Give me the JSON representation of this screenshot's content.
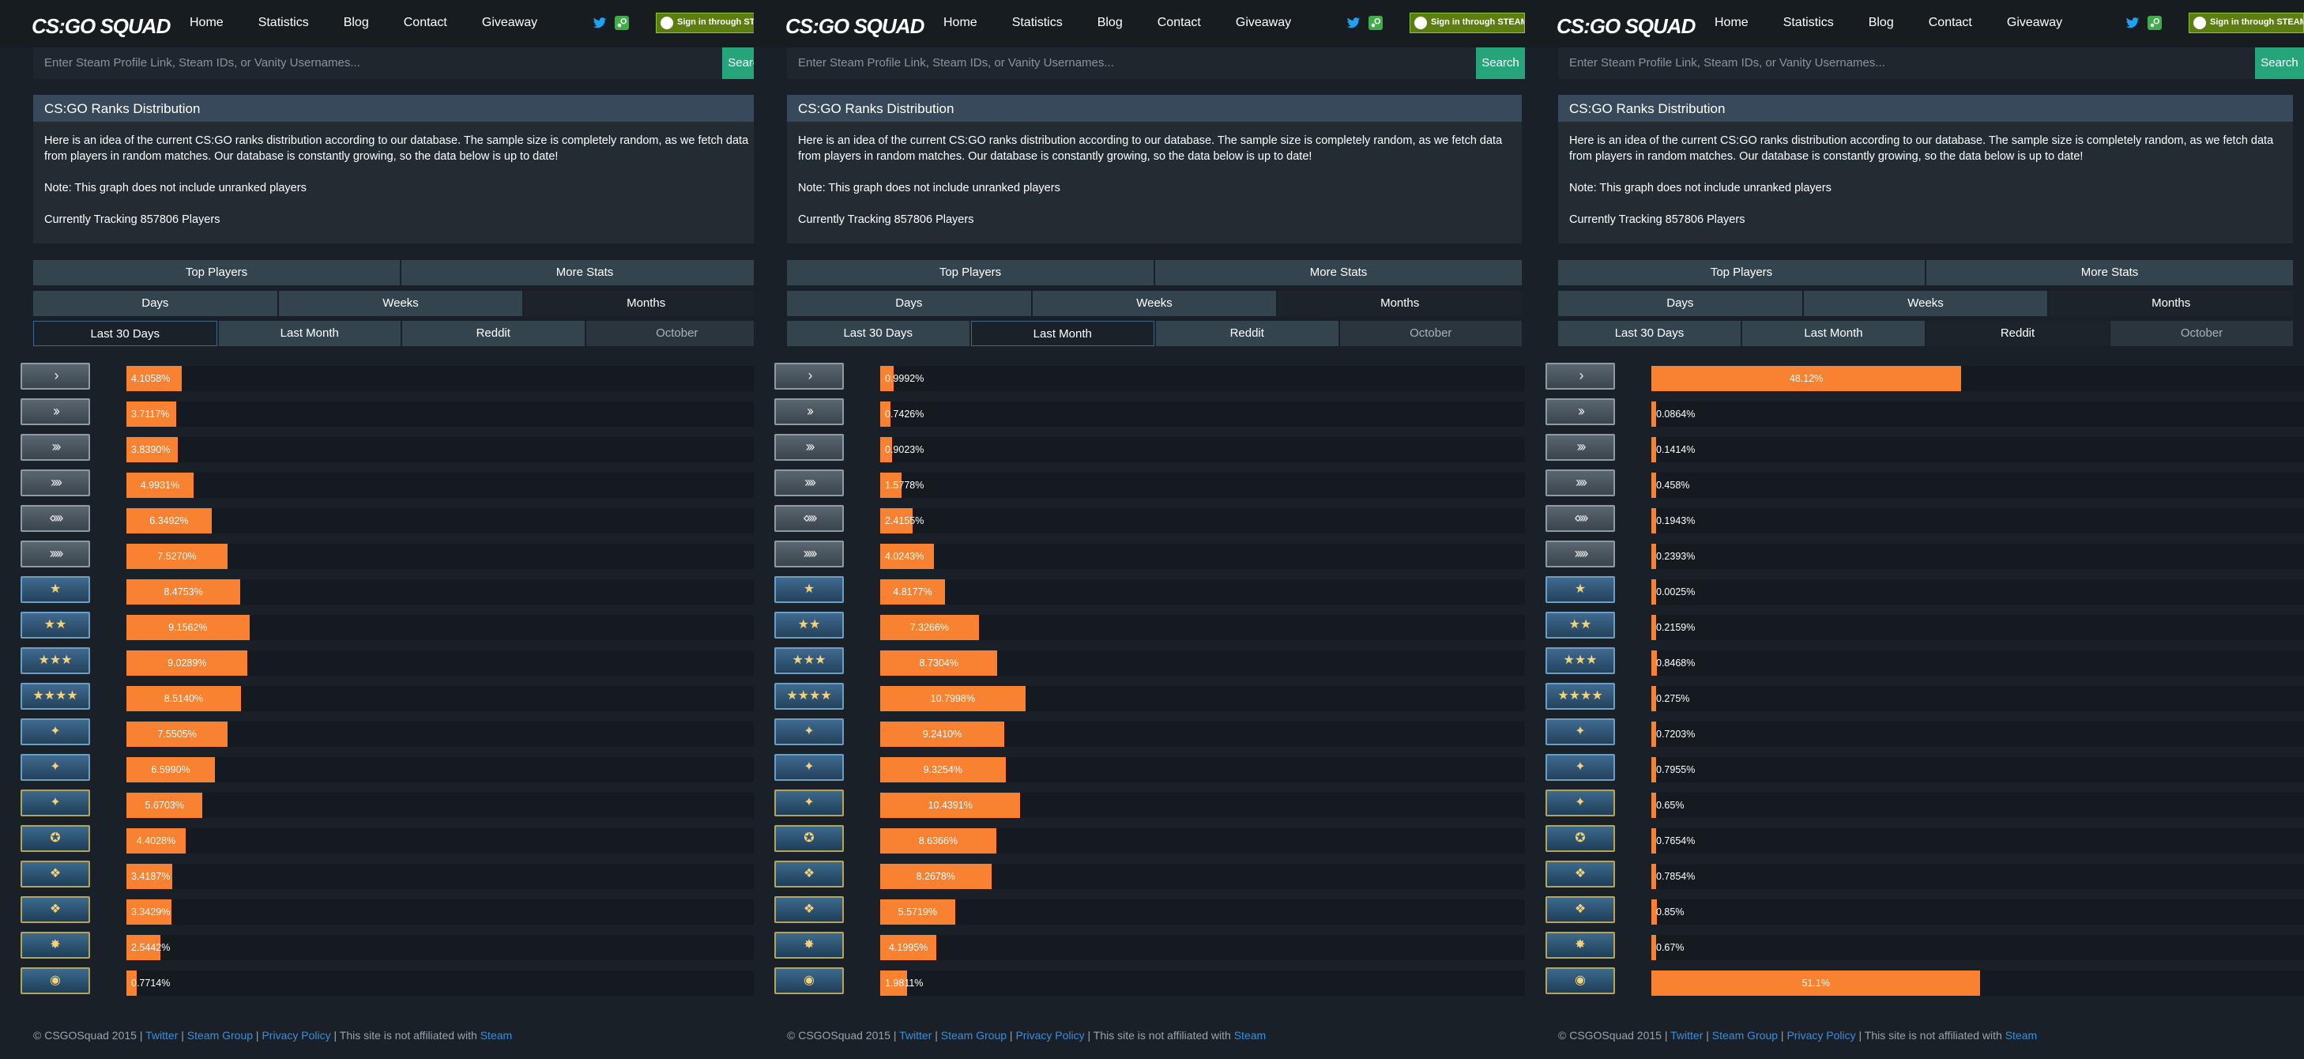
{
  "nav": {
    "logo": "CS:GO SQUAD",
    "links": [
      "Home",
      "Statistics",
      "Blog",
      "Contact",
      "Giveaway"
    ],
    "steam_signin": "Sign in through STEAM"
  },
  "search": {
    "placeholder": "Enter Steam Profile Link, Steam IDs, or Vanity Usernames...",
    "button": "Search"
  },
  "card": {
    "title": "CS:GO Ranks Distribution",
    "paragraph": "Here is an idea of the current CS:GO ranks distribution according to our database. The sample size is completely random, as we fetch data from players in random matches. Our database is constantly growing, so the data below is up to date!",
    "note": "Note: This graph does not include unranked players",
    "tracking": "Currently Tracking 857806 Players"
  },
  "buttons": {
    "row1": [
      "Top Players",
      "More Stats"
    ],
    "row2": [
      "Days",
      "Weeks",
      "Months"
    ],
    "row3": [
      "Last 30 Days",
      "Last Month",
      "Reddit",
      "October"
    ]
  },
  "footer": {
    "copyright": "© CSGOSquad 2015 |",
    "twitter": "Twitter",
    "sep1": " | ",
    "steam_group": "Steam Group",
    "sep2": " | ",
    "privacy": "Privacy Policy",
    "sep3": " | This site is not affiliated with ",
    "steam": "Steam"
  },
  "rank_icons": [
    "silver-1",
    "silver-2",
    "silver-3",
    "silver-4",
    "silver-elite",
    "silver-elite-master",
    "gold-nova-1",
    "gold-nova-2",
    "gold-nova-3",
    "gold-nova-master",
    "master-guardian-1",
    "master-guardian-2",
    "master-guardian-elite",
    "distinguished-master-guardian",
    "legendary-eagle",
    "legendary-eagle-master",
    "supreme-master-first-class",
    "global-elite"
  ],
  "accent_color": "#f98132",
  "search_color": "#27a57a",
  "chart_data": [
    {
      "type": "bar",
      "selected_tab": "Last 30 Days",
      "categories": [
        "silver-1",
        "silver-2",
        "silver-3",
        "silver-4",
        "silver-elite",
        "silver-elite-master",
        "gold-nova-1",
        "gold-nova-2",
        "gold-nova-3",
        "gold-nova-master",
        "master-guardian-1",
        "master-guardian-2",
        "master-guardian-elite",
        "distinguished-master-guardian",
        "legendary-eagle",
        "legendary-eagle-master",
        "supreme-master-first-class",
        "global-elite"
      ],
      "labels": [
        "4.1058%",
        "3.7117%",
        "3.8390%",
        "4.9931%",
        "6.3492%",
        "7.5270%",
        "8.4753%",
        "9.1562%",
        "9.0289%",
        "8.5140%",
        "7.5505%",
        "6.5990%",
        "5.6703%",
        "4.4028%",
        "3.4187%",
        "3.3429%",
        "2.5442%",
        "0.7714%"
      ],
      "values": [
        4.1058,
        3.7117,
        3.839,
        4.9931,
        6.3492,
        7.527,
        8.4753,
        9.1562,
        9.0289,
        8.514,
        7.5505,
        6.599,
        5.6703,
        4.4028,
        3.4187,
        3.3429,
        2.5442,
        0.7714
      ]
    },
    {
      "type": "bar",
      "selected_tab": "Last Month",
      "categories": [
        "silver-1",
        "silver-2",
        "silver-3",
        "silver-4",
        "silver-elite",
        "silver-elite-master",
        "gold-nova-1",
        "gold-nova-2",
        "gold-nova-3",
        "gold-nova-master",
        "master-guardian-1",
        "master-guardian-2",
        "master-guardian-elite",
        "distinguished-master-guardian",
        "legendary-eagle",
        "legendary-eagle-master",
        "supreme-master-first-class",
        "global-elite"
      ],
      "labels": [
        "0.9992%",
        "0.7426%",
        "0.9023%",
        "1.5778%",
        "2.4155%",
        "4.0243%",
        "4.8177%",
        "7.3266%",
        "8.7304%",
        "10.7998%",
        "9.2410%",
        "9.3254%",
        "10.4391%",
        "8.6366%",
        "8.2678%",
        "5.5719%",
        "4.1995%",
        "1.9811%"
      ],
      "values": [
        0.9992,
        0.7426,
        0.9023,
        1.5778,
        2.4155,
        4.0243,
        4.8177,
        7.3266,
        8.7304,
        10.7998,
        9.241,
        9.3254,
        10.4391,
        8.6366,
        8.2678,
        5.5719,
        4.1995,
        1.9811
      ]
    },
    {
      "type": "bar",
      "selected_tab": "Reddit",
      "categories": [
        "silver-1",
        "silver-2",
        "silver-3",
        "silver-4",
        "silver-elite",
        "silver-elite-master",
        "gold-nova-1",
        "gold-nova-2",
        "gold-nova-3",
        "gold-nova-master",
        "master-guardian-1",
        "master-guardian-2",
        "master-guardian-elite",
        "distinguished-master-guardian",
        "legendary-eagle",
        "legendary-eagle-master",
        "supreme-master-first-class",
        "global-elite"
      ],
      "labels": [
        "48.12%",
        "0.0864%",
        "0.1414%",
        "0.458%",
        "0.1943%",
        "0.2393%",
        "0.0025%",
        "0.2159%",
        "0.8468%",
        "0.275%",
        "0.7203%",
        "0.7955%",
        "0.65%",
        "0.7654%",
        "0.7854%",
        "0.85%",
        "0.67%",
        "51.1%"
      ],
      "values": [
        48.12,
        0.0864,
        0.1414,
        0.458,
        0.1943,
        0.2393,
        0.0025,
        0.2159,
        0.8468,
        0.275,
        0.7203,
        0.7955,
        0.65,
        0.7654,
        0.7854,
        0.85,
        0.67,
        51.1
      ]
    }
  ]
}
